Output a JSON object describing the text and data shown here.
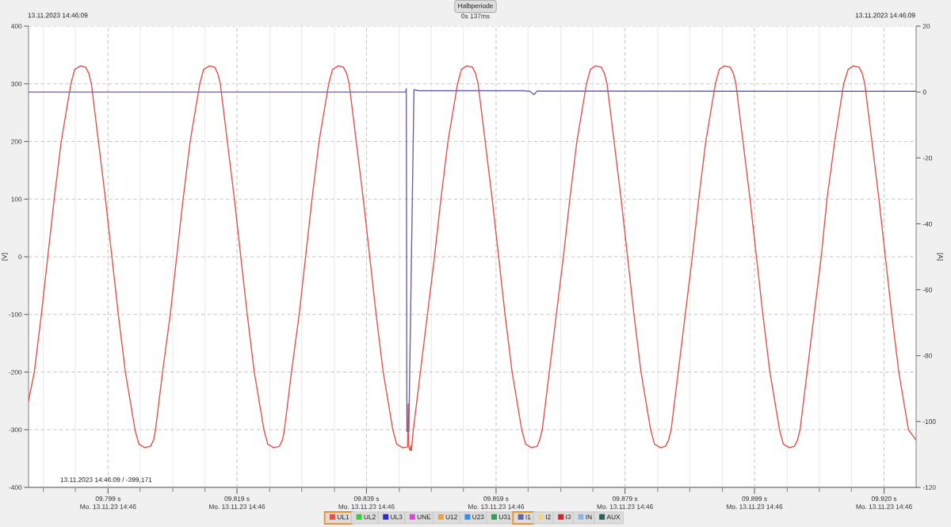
{
  "chart_data": {
    "type": "line",
    "title": "Halbperiode",
    "subtitle": "0s 137ms",
    "ylabel": "[V]",
    "y2label": "[A]",
    "annotations": [
      "13.11.2023 14:46:09",
      "13.11.2023 14:46:09",
      "13.11.2023 14:46:09 / -399,171",
      "Mo. 13.11.23 14:46",
      "Mo. 13.11.23 14:46",
      "Mo. 13.11.23 14:46",
      "Mo. 13.11.23 14:46",
      "Mo. 13.11.23 14:46",
      "Mo. 13.11.23 14:46",
      "Mo. 13.11.23 14:46"
    ],
    "xlim": [
      9.7862,
      9.9246
    ],
    "xticks": [
      {
        "value": 9.7885,
        "label": null
      },
      {
        "value": 9.7935,
        "label": null
      },
      {
        "value": 9.7986,
        "label": "09.799 s"
      },
      {
        "value": 9.8036,
        "label": null
      },
      {
        "value": 9.8087,
        "label": null
      },
      {
        "value": 9.8137,
        "label": null
      },
      {
        "value": 9.8187,
        "label": "09.819 s"
      },
      {
        "value": 9.8238,
        "label": null
      },
      {
        "value": 9.8288,
        "label": null
      },
      {
        "value": 9.8339,
        "label": null
      },
      {
        "value": 9.8389,
        "label": "09.839 s"
      },
      {
        "value": 9.844,
        "label": null
      },
      {
        "value": 9.849,
        "label": null
      },
      {
        "value": 9.854,
        "label": null
      },
      {
        "value": 9.8591,
        "label": "09.859 s"
      },
      {
        "value": 9.8641,
        "label": null
      },
      {
        "value": 9.8692,
        "label": null
      },
      {
        "value": 9.8742,
        "label": null
      },
      {
        "value": 9.8792,
        "label": "09.879 s"
      },
      {
        "value": 9.8843,
        "label": null
      },
      {
        "value": 9.8893,
        "label": null
      },
      {
        "value": 9.8944,
        "label": null
      },
      {
        "value": 9.8994,
        "label": "09.899 s"
      },
      {
        "value": 9.9045,
        "label": null
      },
      {
        "value": 9.9095,
        "label": null
      },
      {
        "value": 9.9145,
        "label": null
      },
      {
        "value": 9.9196,
        "label": "09.920 s"
      }
    ],
    "ylim": [
      -400,
      400
    ],
    "yticks": [
      -400,
      -300,
      -200,
      -100,
      0,
      100,
      200,
      300,
      400
    ],
    "y2lim": [
      -120,
      20
    ],
    "y2ticks": [
      -120,
      -100,
      -80,
      -60,
      -40,
      -20,
      0,
      20
    ],
    "grid": true,
    "legend": "bottom",
    "series": [
      {
        "name": "UL1",
        "color": "#e4514b",
        "x": [
          9.7862,
          9.7871,
          9.7882,
          9.7892,
          9.7902,
          9.7913,
          9.7928,
          9.7934,
          9.7943,
          9.7951,
          9.7956,
          9.796,
          9.7971,
          9.7982,
          9.7992,
          9.8002,
          9.8013,
          9.8028,
          9.8034,
          9.8043,
          9.8052,
          9.8057,
          9.806,
          9.8071,
          9.8083,
          9.8093,
          9.8103,
          9.8114,
          9.8129,
          9.8135,
          9.8144,
          9.8152,
          9.8157,
          9.8161,
          9.8172,
          9.8183,
          9.8193,
          9.8203,
          9.8214,
          9.8229,
          9.8235,
          9.8244,
          9.8253,
          9.8258,
          9.8261,
          9.8272,
          9.8284,
          9.8294,
          9.8304,
          9.8315,
          9.833,
          9.8336,
          9.8345,
          9.8353,
          9.8358,
          9.8362,
          9.8373,
          9.8384,
          9.8394,
          9.8404,
          9.8415,
          9.843,
          9.8436,
          9.8445,
          9.8453,
          9.8454,
          9.8455,
          9.8457,
          9.8458,
          9.8459,
          9.8462,
          9.847,
          9.8473,
          9.8484,
          9.8495,
          9.8505,
          9.8516,
          9.8531,
          9.8537,
          9.8545,
          9.8554,
          9.8559,
          9.8563,
          9.8574,
          9.8585,
          9.8595,
          9.8605,
          9.8616,
          9.8631,
          9.8637,
          9.8646,
          9.8655,
          9.8659,
          9.8663,
          9.8674,
          9.8685,
          9.8696,
          9.8706,
          9.8717,
          9.8732,
          9.8738,
          9.8746,
          9.8755,
          9.876,
          9.8764,
          9.8775,
          9.8786,
          9.8796,
          9.8806,
          9.8817,
          9.8832,
          9.8838,
          9.8847,
          9.8855,
          9.886,
          9.8864,
          9.8875,
          9.8886,
          9.8897,
          9.8907,
          9.8918,
          9.8933,
          9.8939,
          9.8947,
          9.8956,
          9.8961,
          9.8965,
          9.8976,
          9.8987,
          9.8997,
          9.9007,
          9.9018,
          9.9033,
          9.9039,
          9.9048,
          9.9056,
          9.9061,
          9.9065,
          9.9076,
          9.9087,
          9.9098,
          9.9107,
          9.9119,
          9.9133,
          9.914,
          9.9148,
          9.9157,
          9.9162,
          9.9166,
          9.9177,
          9.9188,
          9.9198,
          9.9208,
          9.9219,
          9.9234,
          9.9246
        ],
        "values": [
          -250,
          -200,
          -100,
          0,
          100,
          200,
          300,
          325,
          331,
          329,
          318,
          300,
          200,
          100,
          0,
          -100,
          -200,
          -300,
          -325,
          -331,
          -329,
          -318,
          -300,
          -200,
          -100,
          0,
          100,
          200,
          300,
          325,
          331,
          329,
          318,
          300,
          200,
          100,
          0,
          -100,
          -200,
          -300,
          -325,
          -331,
          -329,
          -318,
          -300,
          -200,
          -100,
          0,
          100,
          200,
          300,
          325,
          331,
          329,
          318,
          300,
          200,
          100,
          0,
          -100,
          -200,
          -300,
          -325,
          -331,
          -330,
          -255,
          -330,
          -336,
          -328,
          -336,
          -300,
          -228,
          -200,
          -100,
          0,
          100,
          200,
          300,
          325,
          331,
          329,
          318,
          300,
          200,
          100,
          0,
          -100,
          -200,
          -300,
          -325,
          -331,
          -329,
          -318,
          -300,
          -200,
          -100,
          0,
          100,
          200,
          300,
          325,
          331,
          329,
          318,
          300,
          200,
          100,
          0,
          -100,
          -200,
          -300,
          -325,
          -331,
          -329,
          -318,
          -300,
          -200,
          -100,
          0,
          100,
          200,
          300,
          325,
          331,
          329,
          318,
          300,
          200,
          100,
          0,
          -100,
          -200,
          -300,
          -325,
          -331,
          -329,
          -318,
          -300,
          -200,
          -100,
          0,
          100,
          200,
          300,
          325,
          331,
          329,
          318,
          300,
          200,
          100,
          0,
          -100,
          -200,
          -300,
          -318
        ]
      },
      {
        "name": "UL2",
        "color": "#38d038"
      },
      {
        "name": "UL3",
        "color": "#2b2bd6"
      },
      {
        "name": "UNE",
        "color": "#e040e0"
      },
      {
        "name": "U12",
        "color": "#eea23a"
      },
      {
        "name": "U23",
        "color": "#3a8ee6"
      },
      {
        "name": "U31",
        "color": "#3a9a5a"
      },
      {
        "name": "I1",
        "color": "#6a62a4",
        "axis": "y2",
        "x": [
          9.7862,
          9.845,
          9.8451,
          9.8452,
          9.8455,
          9.8463,
          9.8471,
          9.8634,
          9.8644,
          9.865,
          9.8655,
          9.9246
        ],
        "values": [
          0,
          0,
          1,
          -103,
          -103,
          0.7,
          0.4,
          0.4,
          0.2,
          -0.8,
          0.3,
          0.2
        ]
      },
      {
        "name": "I2",
        "color": "#f4d47a"
      },
      {
        "name": "I3",
        "color": "#d02828"
      },
      {
        "name": "IN",
        "color": "#86b8ea"
      },
      {
        "name": "AUX",
        "color": "#2e5e5a"
      }
    ]
  }
}
